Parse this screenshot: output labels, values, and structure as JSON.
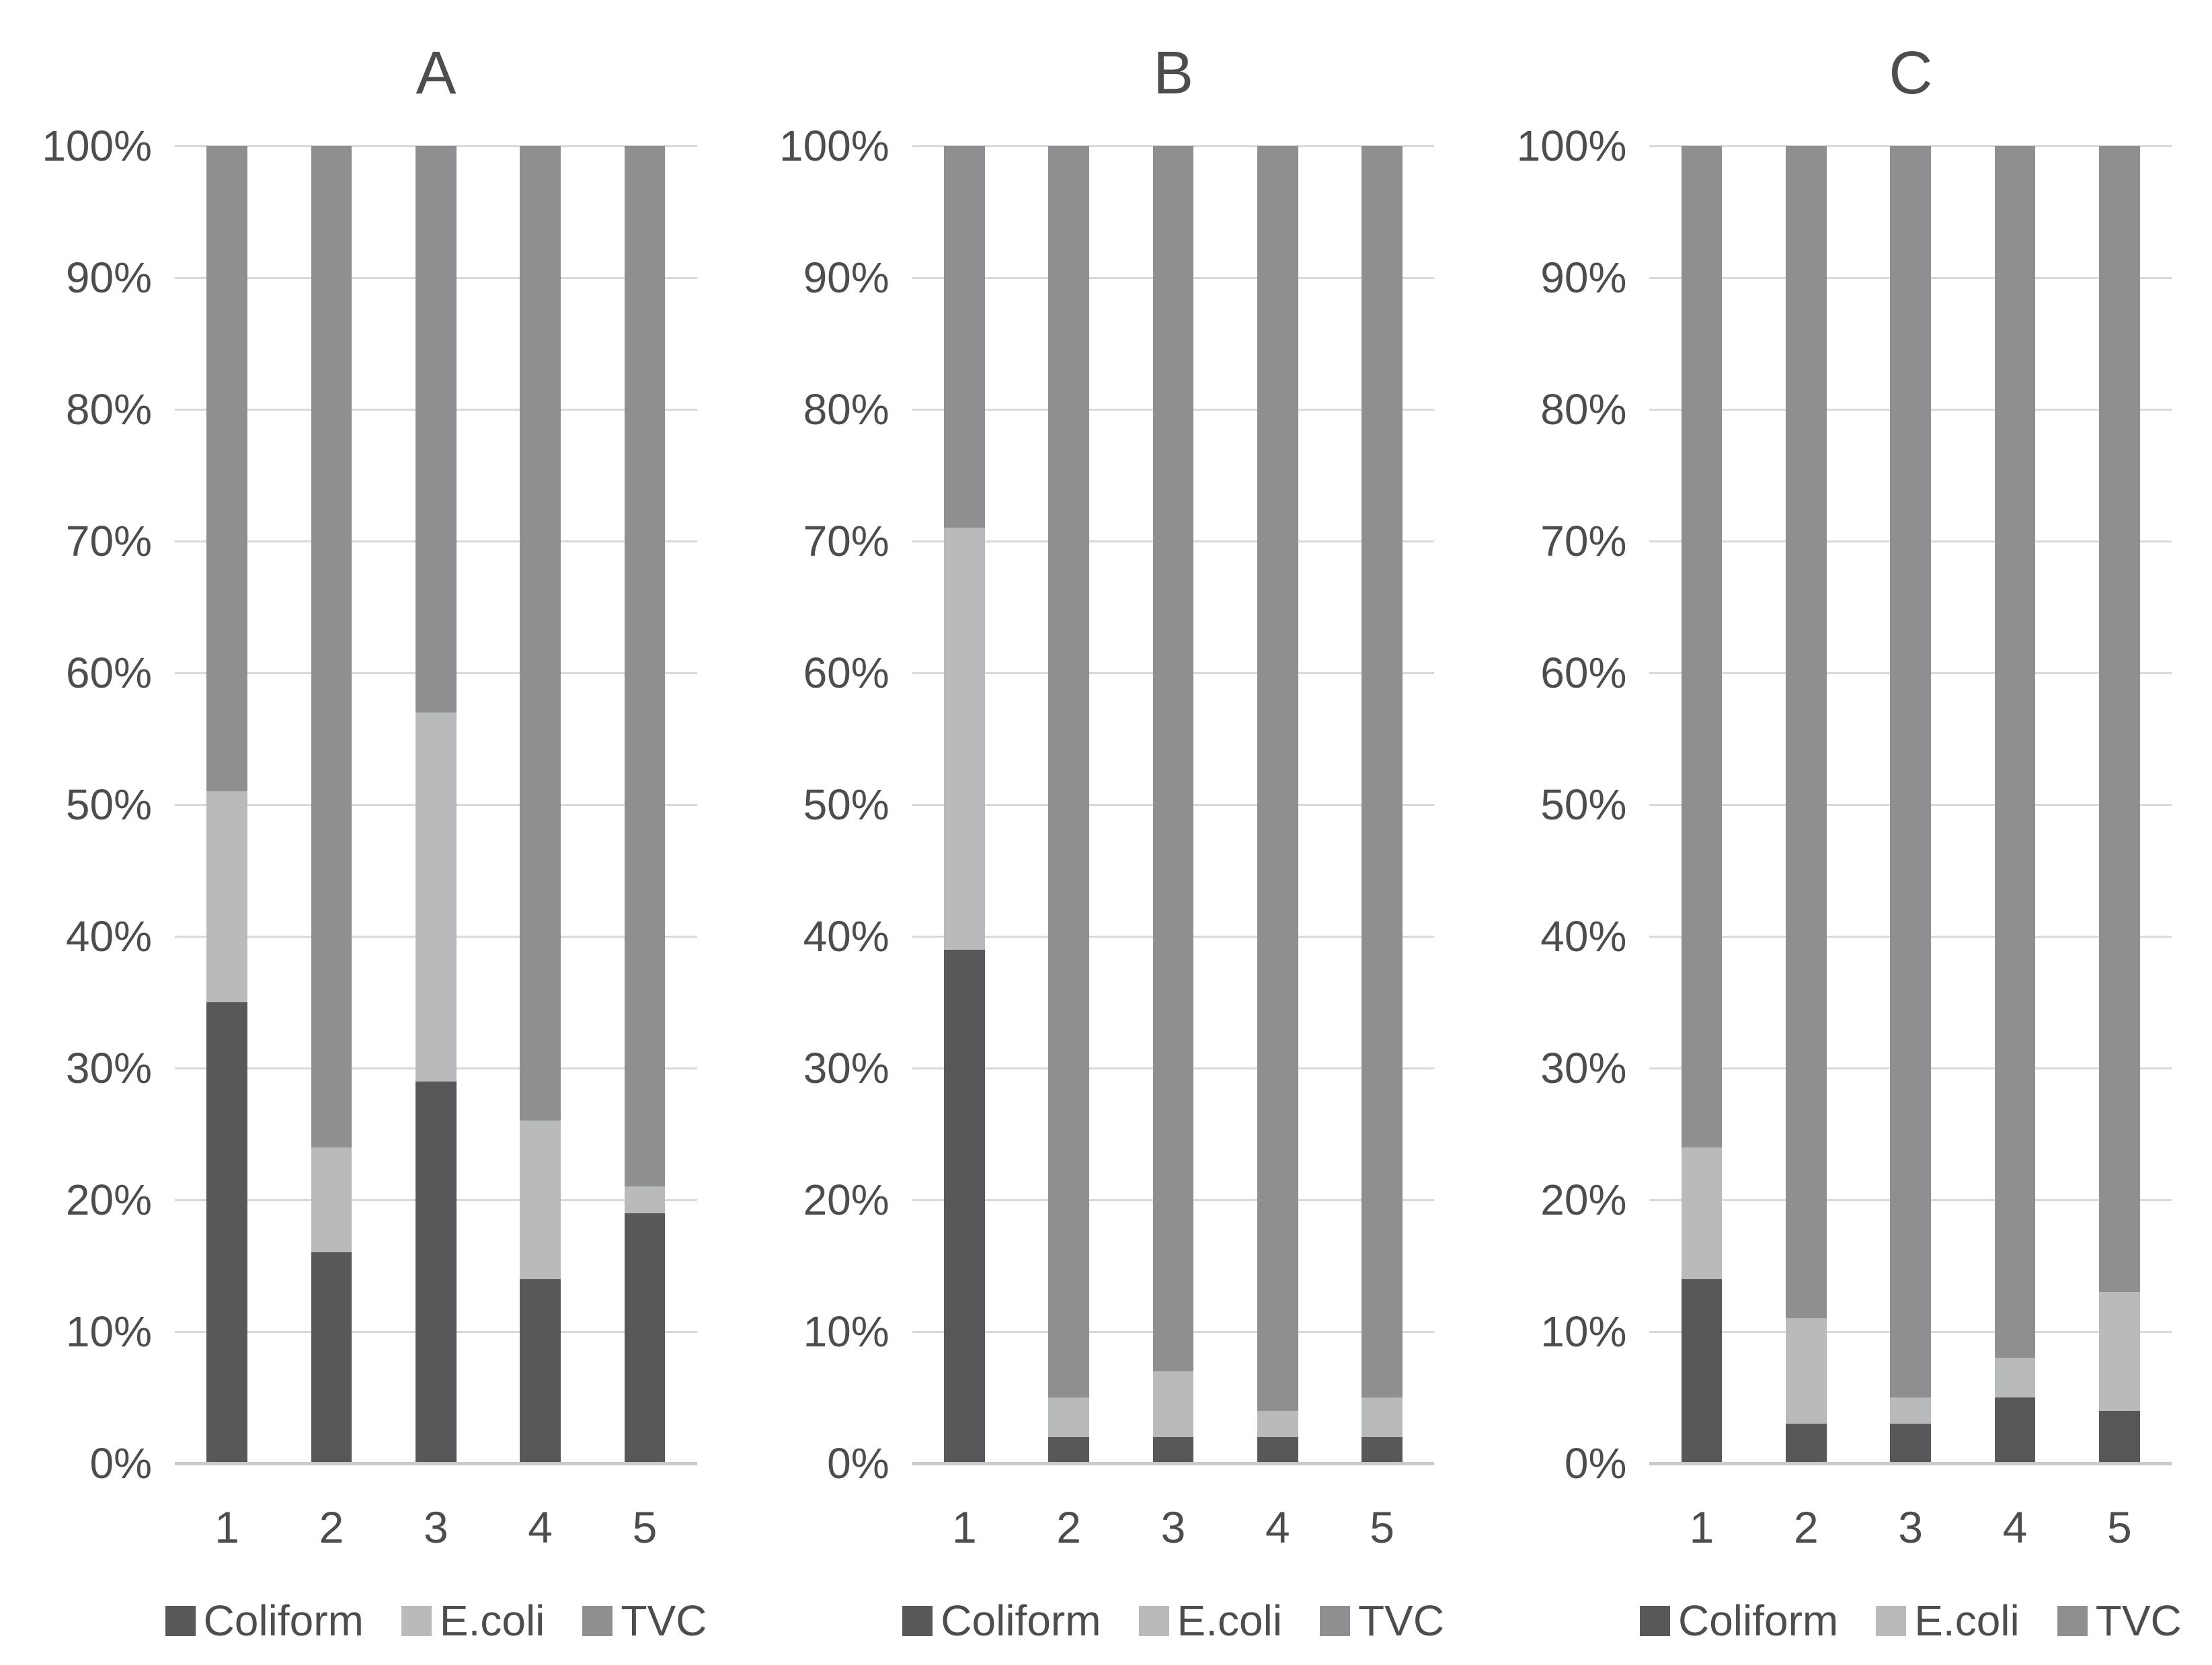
{
  "figure": {
    "description": "Three 100% stacked column charts labelled A, B and C comparing Coliform, E.coli and TVC proportions across samples 1-5",
    "background": "#ffffff",
    "text_color": "#4d4d4d",
    "gridline_color": "#d9d9d9",
    "axis_line_color": "#c9c9c9"
  },
  "chart_data": [
    {
      "type": "bar",
      "stacked": true,
      "percent": true,
      "title": "A",
      "categories": [
        "1",
        "2",
        "3",
        "4",
        "5"
      ],
      "series": [
        {
          "name": "Coliform",
          "color": "#58585a",
          "values": [
            35,
            16,
            29,
            14,
            19
          ]
        },
        {
          "name": "E.coli",
          "color": "#b9babc",
          "values": [
            16,
            8,
            28,
            12,
            2
          ]
        },
        {
          "name": "TVC",
          "color": "#8f8f91",
          "values": [
            49,
            76,
            43,
            74,
            79
          ]
        }
      ],
      "yticks": [
        "100%",
        "90%",
        "80%",
        "70%",
        "60%",
        "50%",
        "40%",
        "30%",
        "20%",
        "10%",
        "0%"
      ],
      "ylim": [
        0,
        100
      ],
      "grid": true,
      "legend_position": "bottom"
    },
    {
      "type": "bar",
      "stacked": true,
      "percent": true,
      "title": "B",
      "categories": [
        "1",
        "2",
        "3",
        "4",
        "5"
      ],
      "series": [
        {
          "name": "Coliform",
          "color": "#58585a",
          "values": [
            39,
            2,
            2,
            2,
            2
          ]
        },
        {
          "name": "E.coli",
          "color": "#b9babc",
          "values": [
            32,
            3,
            5,
            2,
            3
          ]
        },
        {
          "name": "TVC",
          "color": "#8f8f91",
          "values": [
            29,
            95,
            93,
            96,
            95
          ]
        }
      ],
      "yticks": [
        "100%",
        "90%",
        "80%",
        "70%",
        "60%",
        "50%",
        "40%",
        "30%",
        "20%",
        "10%",
        "0%"
      ],
      "ylim": [
        0,
        100
      ],
      "grid": true,
      "legend_position": "bottom"
    },
    {
      "type": "bar",
      "stacked": true,
      "percent": true,
      "title": "C",
      "categories": [
        "1",
        "2",
        "3",
        "4",
        "5"
      ],
      "series": [
        {
          "name": "Coliform",
          "color": "#58585a",
          "values": [
            14,
            3,
            3,
            5,
            4
          ]
        },
        {
          "name": "E.coli",
          "color": "#b9babc",
          "values": [
            10,
            8,
            2,
            3,
            9
          ]
        },
        {
          "name": "TVC",
          "color": "#8f8f91",
          "values": [
            76,
            89,
            95,
            92,
            87
          ]
        }
      ],
      "yticks": [
        "100%",
        "90%",
        "80%",
        "70%",
        "60%",
        "50%",
        "40%",
        "30%",
        "20%",
        "10%",
        "0%"
      ],
      "ylim": [
        0,
        100
      ],
      "grid": true,
      "legend_position": "bottom"
    }
  ]
}
